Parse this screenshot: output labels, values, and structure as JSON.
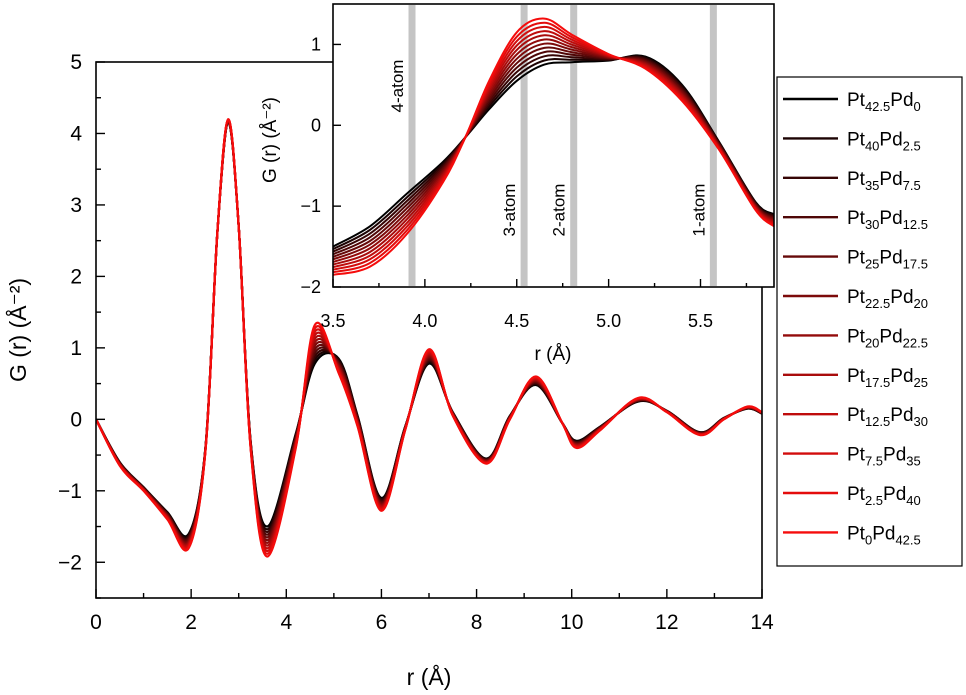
{
  "chart_data": [
    {
      "type": "line",
      "name": "main",
      "title": "",
      "xlabel": "r (Å)",
      "ylabel": "G (r) (Å⁻²)",
      "xlim": [
        0,
        14
      ],
      "ylim": [
        -2.5,
        5
      ],
      "xticks": [
        0,
        2,
        4,
        6,
        8,
        10,
        12,
        14
      ],
      "yticks": [
        -2,
        -1,
        0,
        1,
        2,
        3,
        4,
        5
      ],
      "ytick_labels": [
        "−2",
        "−1",
        "0",
        "1",
        "2",
        "3",
        "4",
        "5"
      ],
      "series": [
        {
          "name": "Pt42.5Pd0",
          "sub": [
            "Pt",
            "42.5",
            "Pd",
            "0"
          ],
          "color": "#000000"
        },
        {
          "name": "Pt40Pd2.5",
          "sub": [
            "Pt",
            "40",
            "Pd",
            "2.5"
          ],
          "color": "#1c0303"
        },
        {
          "name": "Pt35Pd7.5",
          "sub": [
            "Pt",
            "35",
            "Pd",
            "7.5"
          ],
          "color": "#360505"
        },
        {
          "name": "Pt30Pd12.5",
          "sub": [
            "Pt",
            "30",
            "Pd",
            "12.5"
          ],
          "color": "#4f0707"
        },
        {
          "name": "Pt25Pd17.5",
          "sub": [
            "Pt",
            "25",
            "Pd",
            "17.5"
          ],
          "color": "#660909"
        },
        {
          "name": "Pt22.5Pd20",
          "sub": [
            "Pt",
            "22.5",
            "Pd",
            "20"
          ],
          "color": "#7c0a0a"
        },
        {
          "name": "Pt20Pd22.5",
          "sub": [
            "Pt",
            "20",
            "Pd",
            "22.5"
          ],
          "color": "#930b0b"
        },
        {
          "name": "Pt17.5Pd25",
          "sub": [
            "Pt",
            "17.5",
            "Pd",
            "25"
          ],
          "color": "#a90c0c"
        },
        {
          "name": "Pt12.5Pd30",
          "sub": [
            "Pt",
            "12.5",
            "Pd",
            "30"
          ],
          "color": "#bf0c0c"
        },
        {
          "name": "Pt7.5Pd35",
          "sub": [
            "Pt",
            "7.5",
            "Pd",
            "35"
          ],
          "color": "#d20c0c"
        },
        {
          "name": "Pt2.5Pd40",
          "sub": [
            "Pt",
            "2.5",
            "Pd",
            "40"
          ],
          "color": "#e40c0c"
        },
        {
          "name": "Pt0Pd42.5",
          "sub": [
            "Pt",
            "0",
            "Pd",
            "42.5"
          ],
          "color": "#f50c0c"
        }
      ],
      "curve_endpoints": {
        "x": [
          0,
          0.5,
          1.0,
          1.5,
          1.95,
          2.3,
          2.55,
          2.78,
          3.0,
          3.25,
          3.6,
          4.2,
          4.6,
          5.1,
          5.5,
          6.0,
          6.5,
          7.0,
          7.5,
          8.2,
          8.7,
          9.25,
          9.8,
          10.1,
          10.6,
          11.4,
          12.0,
          12.7,
          13.2,
          13.7,
          14.0
        ],
        "pt_rich": [
          0,
          -0.6,
          -0.95,
          -1.3,
          -1.6,
          -0.4,
          2.6,
          4.15,
          2.7,
          -0.3,
          -1.5,
          -0.2,
          0.78,
          0.85,
          0.05,
          -1.1,
          -0.1,
          0.78,
          0.1,
          -0.55,
          0.05,
          0.48,
          -0.05,
          -0.3,
          -0.1,
          0.25,
          0.12,
          -0.18,
          0.02,
          0.15,
          0.08
        ],
        "pd_rich": [
          0,
          -0.65,
          -1.0,
          -1.4,
          -1.8,
          -0.45,
          2.6,
          4.2,
          2.7,
          -0.4,
          -1.92,
          -0.4,
          1.32,
          0.65,
          -0.1,
          -1.28,
          -0.15,
          0.98,
          0.05,
          -0.62,
          0.0,
          0.6,
          -0.05,
          -0.4,
          -0.15,
          0.3,
          0.1,
          -0.22,
          0.0,
          0.18,
          0.1
        ]
      }
    },
    {
      "type": "line",
      "name": "inset",
      "xlabel": "r (Å)",
      "ylabel": "G (r) (Å⁻²)",
      "xlim": [
        3.5,
        5.9
      ],
      "ylim": [
        -2,
        1.5
      ],
      "xticks": [
        3.5,
        4.0,
        4.5,
        5.0,
        5.5
      ],
      "xtick_labels": [
        "3.5",
        "4.0",
        "4.5",
        "5.0",
        "5.5"
      ],
      "yticks": [
        -2,
        -1,
        0,
        1
      ],
      "ytick_labels": [
        "−2",
        "−1",
        "0",
        "1"
      ],
      "curve_endpoints": {
        "x": [
          3.5,
          3.7,
          3.9,
          4.1,
          4.22,
          4.35,
          4.5,
          4.65,
          4.8,
          5.0,
          5.2,
          5.4,
          5.6,
          5.8,
          5.9
        ],
        "pt_rich": [
          -1.5,
          -1.25,
          -0.85,
          -0.45,
          -0.15,
          0.2,
          0.55,
          0.75,
          0.78,
          0.8,
          0.85,
          0.5,
          -0.2,
          -0.95,
          -1.1
        ],
        "pd_rich": [
          -1.85,
          -1.75,
          -1.35,
          -0.7,
          -0.15,
          0.55,
          1.15,
          1.32,
          1.12,
          0.88,
          0.7,
          0.3,
          -0.3,
          -1.05,
          -1.25
        ]
      },
      "annotations": [
        {
          "label": "4-atom",
          "x": 3.93
        },
        {
          "label": "3-atom",
          "x": 4.54
        },
        {
          "label": "2-atom",
          "x": 4.81
        },
        {
          "label": "1-atom",
          "x": 5.57
        }
      ]
    }
  ]
}
